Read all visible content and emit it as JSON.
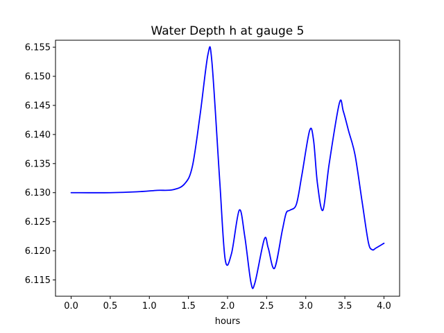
{
  "chart_data": {
    "type": "line",
    "title": "Water Depth h at gauge 5",
    "xlabel": "hours",
    "ylabel": "",
    "xlim": [
      -0.2,
      4.2
    ],
    "ylim": [
      6.1122,
      6.1562
    ],
    "grid": false,
    "legend": "none",
    "x_ticks": [
      0.0,
      0.5,
      1.0,
      1.5,
      2.0,
      2.5,
      3.0,
      3.5,
      4.0
    ],
    "x_tick_labels": [
      "0.0",
      "0.5",
      "1.0",
      "1.5",
      "2.0",
      "2.5",
      "3.0",
      "3.5",
      "4.0"
    ],
    "y_ticks": [
      6.115,
      6.12,
      6.125,
      6.13,
      6.135,
      6.14,
      6.145,
      6.15,
      6.155
    ],
    "y_tick_labels": [
      "6.115",
      "6.120",
      "6.125",
      "6.130",
      "6.135",
      "6.140",
      "6.145",
      "6.150",
      "6.155"
    ],
    "series": [
      {
        "color": "#0000ff",
        "x": [
          0.0,
          0.5,
          0.9,
          1.1,
          1.3,
          1.45,
          1.55,
          1.65,
          1.75,
          1.8,
          1.9,
          1.97,
          2.05,
          2.15,
          2.22,
          2.3,
          2.35,
          2.47,
          2.52,
          2.6,
          2.7,
          2.75,
          2.8,
          2.88,
          2.95,
          3.05,
          3.1,
          3.15,
          3.22,
          3.3,
          3.43,
          3.48,
          3.55,
          3.63,
          3.72,
          3.8,
          3.85,
          3.9,
          4.0
        ],
        "y": [
          6.13,
          6.13,
          6.1302,
          6.1304,
          6.1305,
          6.1315,
          6.1345,
          6.1435,
          6.1538,
          6.1525,
          6.132,
          6.1185,
          6.1195,
          6.127,
          6.1225,
          6.1145,
          6.1145,
          6.122,
          6.1205,
          6.117,
          6.1235,
          6.1265,
          6.127,
          6.128,
          6.133,
          6.1407,
          6.139,
          6.1315,
          6.127,
          6.135,
          6.1454,
          6.144,
          6.1405,
          6.1365,
          6.1285,
          6.1215,
          6.1202,
          6.1205,
          6.1213
        ]
      }
    ]
  }
}
